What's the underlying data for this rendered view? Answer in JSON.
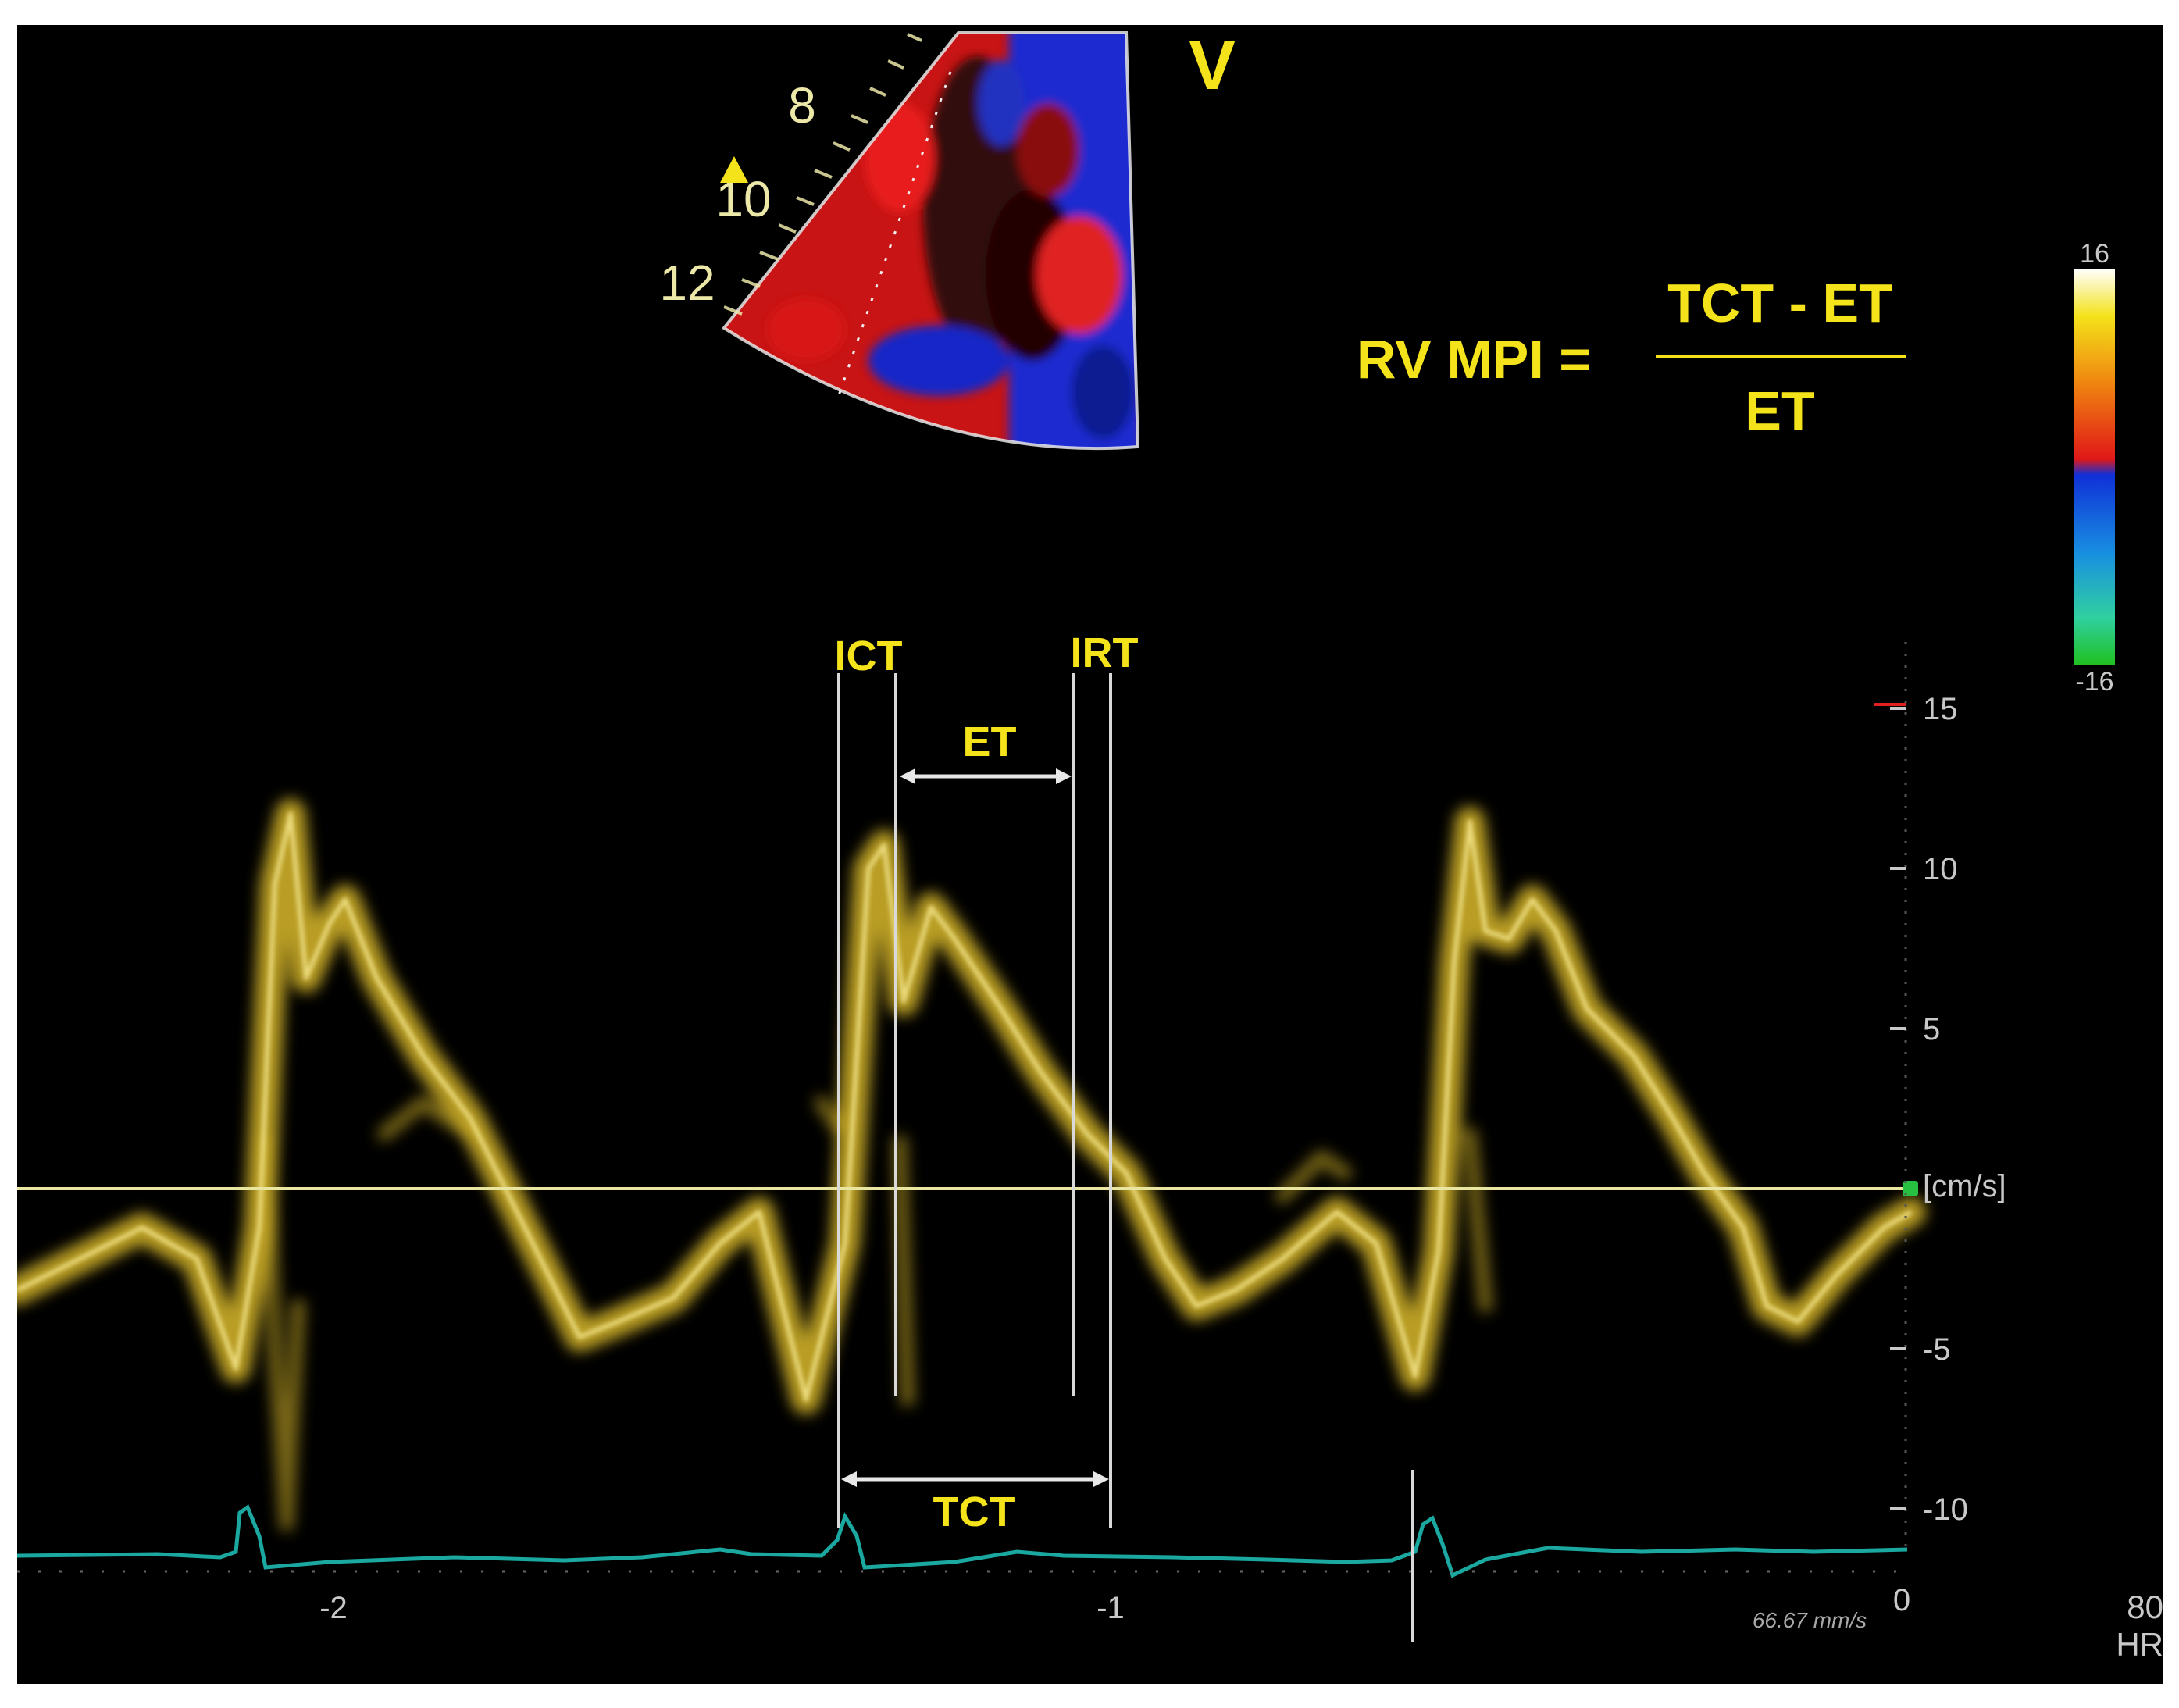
{
  "colors": {
    "annotation_yellow": "#f4e21a",
    "waveform_yellow": "#d9b82a",
    "ecg_trace": "#1aa8a0",
    "marker_line": "#d9d9d9",
    "baseline": "#e8e6a0",
    "scale_text": "#c8c8c8",
    "color_map_red": "#e01818",
    "color_map_blue": "#1030d8"
  },
  "sector": {
    "depth_labels": [
      "8",
      "10",
      "12"
    ],
    "probe_marker_icon": "triangle-marker-icon",
    "view_label": "V"
  },
  "formula": {
    "lhs": "RV MPI =",
    "numerator": "TCT - ET",
    "denominator": "ET"
  },
  "color_scale": {
    "top_label": "16",
    "bottom_label": "-16"
  },
  "intervals": {
    "ict": "ICT",
    "irt": "IRT",
    "et": "ET",
    "tct": "TCT"
  },
  "velocity_axis": {
    "tick_labels": [
      "15",
      "10",
      "5",
      "-5",
      "-10"
    ],
    "tick_values": [
      15,
      10,
      5,
      -5,
      -10
    ],
    "unit": "[cm/s]"
  },
  "time_axis": {
    "labels": [
      "-2",
      "-1",
      "0"
    ],
    "sweep_speed": "66.67 mm/s"
  },
  "heart_rate": {
    "value": "80",
    "label": "HR"
  }
}
